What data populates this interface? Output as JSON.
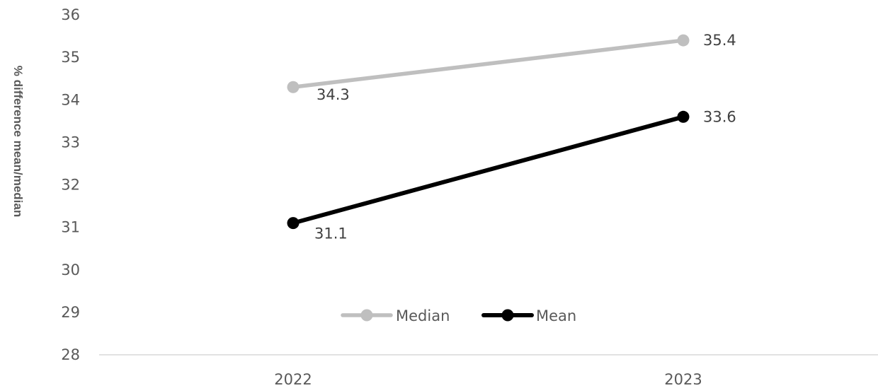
{
  "chart_data": {
    "type": "line",
    "title": "",
    "xlabel": "",
    "ylabel": "% difference mean/median",
    "x": [
      "2022",
      "2023"
    ],
    "ylim": [
      28,
      36
    ],
    "yticks": [
      28,
      29,
      30,
      31,
      32,
      33,
      34,
      35,
      36
    ],
    "y_tick_labels": [
      "28",
      "29",
      "30",
      "31",
      "32",
      "33",
      "34",
      "35",
      "36"
    ],
    "grid": false,
    "legend": "bottom-center (inside plot)",
    "series": [
      {
        "name": "Median",
        "values": [
          34.3,
          35.4
        ],
        "value_labels": [
          "34.3",
          "35.4"
        ],
        "color": "#bfbfbf"
      },
      {
        "name": "Mean",
        "values": [
          31.1,
          33.6
        ],
        "value_labels": [
          "31.1",
          "33.6"
        ],
        "color": "#000000"
      }
    ]
  }
}
